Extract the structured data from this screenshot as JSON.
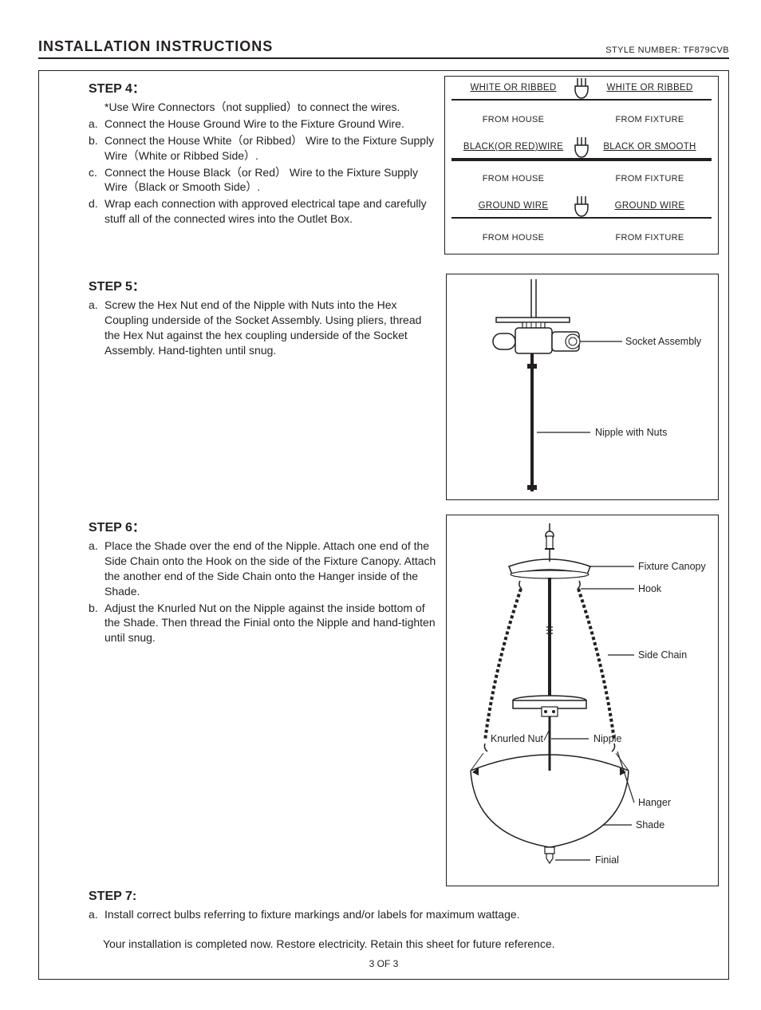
{
  "header": {
    "title": "INSTALLATION INSTRUCTIONS",
    "style_label": "STYLE NUMBER",
    "style_number": "TF879CVB"
  },
  "step4": {
    "title": "STEP 4：",
    "note": "*Use Wire Connectors（not supplied）to connect the wires.",
    "items": [
      {
        "lbl": "a.",
        "txt": "Connect the House Ground Wire to the Fixture Ground Wire."
      },
      {
        "lbl": "b.",
        "txt": "Connect the House White（or Ribbed） Wire to the Fixture Supply Wire（White or Ribbed Side）."
      },
      {
        "lbl": "c.",
        "txt": "Connect the House Black（or Red） Wire to the Fixture Supply Wire（Black or Smooth Side）."
      },
      {
        "lbl": "d.",
        "txt": "Wrap each connection with approved electrical tape and carefully stuff all of the  connected wires  into the Outlet Box."
      }
    ],
    "wire_diagram": {
      "rows": [
        {
          "left": "WHITE OR RIBBED",
          "right": "WHITE OR RIBBED",
          "sub_left": "FROM HOUSE",
          "sub_right": "FROM FIXTURE",
          "thick": false
        },
        {
          "left": "BLACK(OR RED)WIRE",
          "right": "BLACK OR SMOOTH",
          "sub_left": "FROM HOUSE",
          "sub_right": "FROM FIXTURE",
          "thick": true
        },
        {
          "left": "GROUND WIRE",
          "right": "GROUND WIRE",
          "sub_left": "FROM HOUSE",
          "sub_right": "FROM FIXTURE",
          "thick": false
        }
      ]
    }
  },
  "step5": {
    "title": "STEP 5：",
    "items": [
      {
        "lbl": "a.",
        "txt": "Screw the Hex Nut end of the Nipple with Nuts into the Hex Coupling underside of the Socket Assembly. Using pliers, thread the Hex Nut against the hex coupling underside of the Socket Assembly. Hand-tighten until snug."
      }
    ],
    "labels": {
      "socket": "Socket Assembly",
      "nipple": "Nipple with Nuts"
    }
  },
  "step6": {
    "title": "STEP 6：",
    "items": [
      {
        "lbl": "a.",
        "txt": " Place the Shade over the end of the Nipple. Attach one end of the Side Chain onto the Hook on the side of the Fixture Canopy. Attach the another end of the Side Chain onto the Hanger inside of the Shade."
      },
      {
        "lbl": "b.",
        "txt": " Adjust the Knurled Nut on the Nipple against the inside bottom of the Shade. Then thread the Finial onto the Nipple and hand-tighten until snug."
      }
    ],
    "labels": {
      "canopy": "Fixture Canopy",
      "hook": "Hook",
      "chain": "Side Chain",
      "knurled": "Knurled Nut",
      "nipple": "Nipple",
      "hanger": "Hanger",
      "shade": "Shade",
      "finial": "Finial"
    }
  },
  "step7": {
    "title": "STEP 7:",
    "items": [
      {
        "lbl": "a.",
        "txt": " Install correct bulbs referring to fixture markings and/or labels for maximum wattage."
      }
    ],
    "closing": "Your installation is completed now. Restore electricity. Retain this sheet for future reference."
  },
  "footer": {
    "page": "3 OF 3"
  },
  "colors": {
    "text": "#231f20",
    "line": "#231f20",
    "bg": "#ffffff"
  }
}
